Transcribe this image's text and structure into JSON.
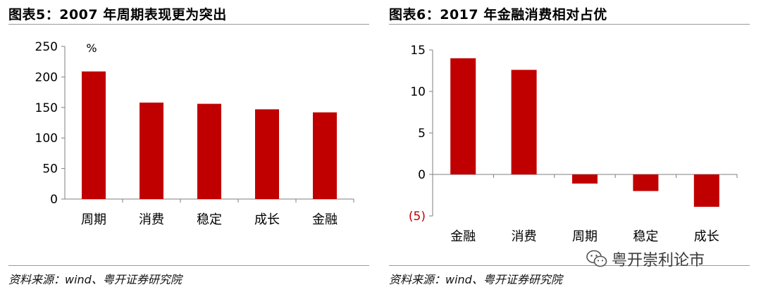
{
  "colors": {
    "bar": "#c00000",
    "axis": "#7f7f7f",
    "negative_tick": "#c00000"
  },
  "left_panel": {
    "title": "图表5：2007 年周期表现更为突出",
    "source": "资料来源：wind、粤开证券研究院"
  },
  "right_panel": {
    "title": "图表6：2017 年金融消费相对占优",
    "source": "资料来源：wind、粤开证券研究院"
  },
  "watermark": {
    "text": "粤开崇利论市",
    "icon": "wechat-icon"
  },
  "chart_data": [
    {
      "type": "bar",
      "title": "图表5：2007 年周期表现更为突出",
      "unit_label": "%",
      "categories": [
        "周期",
        "消费",
        "稳定",
        "成长",
        "金融"
      ],
      "values": [
        209,
        158,
        156,
        147,
        142
      ],
      "ylim": [
        0,
        250
      ],
      "yticks": [
        0,
        50,
        100,
        150,
        200,
        250
      ],
      "ytick_labels": [
        "0",
        "50",
        "100",
        "150",
        "200",
        "250"
      ],
      "grid": false,
      "legend": "none"
    },
    {
      "type": "bar",
      "title": "图表6：2017 年金融消费相对占优",
      "categories": [
        "金融",
        "消费",
        "周期",
        "稳定",
        "成长"
      ],
      "values": [
        14.0,
        12.6,
        -1.1,
        -2.0,
        -3.9
      ],
      "ylim": [
        -5,
        15
      ],
      "yticks": [
        -5,
        0,
        5,
        10,
        15
      ],
      "ytick_labels": [
        "(5)",
        "0",
        "5",
        "10",
        "15"
      ],
      "grid": false,
      "legend": "none"
    }
  ]
}
